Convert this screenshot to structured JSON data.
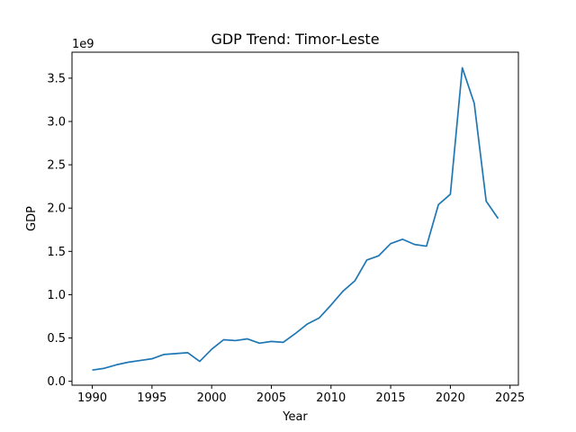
{
  "chart_data": {
    "type": "line",
    "title": "GDP Trend: Timor-Leste",
    "xlabel": "Year",
    "ylabel": "GDP",
    "y_offset_label": "1e9",
    "y_scale": 1000000000,
    "xlim": [
      1988.3,
      2025.7
    ],
    "ylim": [
      -0.045,
      3.8
    ],
    "x_ticks": [
      1990,
      1995,
      2000,
      2005,
      2010,
      2015,
      2020,
      2025
    ],
    "y_ticks": [
      0.0,
      0.5,
      1.0,
      1.5,
      2.0,
      2.5,
      3.0,
      3.5
    ],
    "y_tick_labels": [
      "0.0",
      "0.5",
      "1.0",
      "1.5",
      "2.0",
      "2.5",
      "3.0",
      "3.5"
    ],
    "grid": false,
    "series": [
      {
        "color": "#1f77b4",
        "x": [
          1990,
          1991,
          1992,
          1993,
          1994,
          1995,
          1996,
          1997,
          1998,
          1999,
          2000,
          2001,
          2002,
          2003,
          2004,
          2005,
          2006,
          2007,
          2008,
          2009,
          2010,
          2011,
          2012,
          2013,
          2014,
          2015,
          2016,
          2017,
          2018,
          2019,
          2020,
          2021,
          2022,
          2023,
          2024
        ],
        "y": [
          0.13,
          0.15,
          0.19,
          0.22,
          0.24,
          0.26,
          0.31,
          0.32,
          0.33,
          0.23,
          0.37,
          0.48,
          0.47,
          0.49,
          0.44,
          0.46,
          0.45,
          0.55,
          0.66,
          0.73,
          0.88,
          1.04,
          1.16,
          1.4,
          1.45,
          1.59,
          1.64,
          1.58,
          1.56,
          2.04,
          2.16,
          3.62,
          3.21,
          2.08,
          1.88
        ]
      }
    ]
  }
}
